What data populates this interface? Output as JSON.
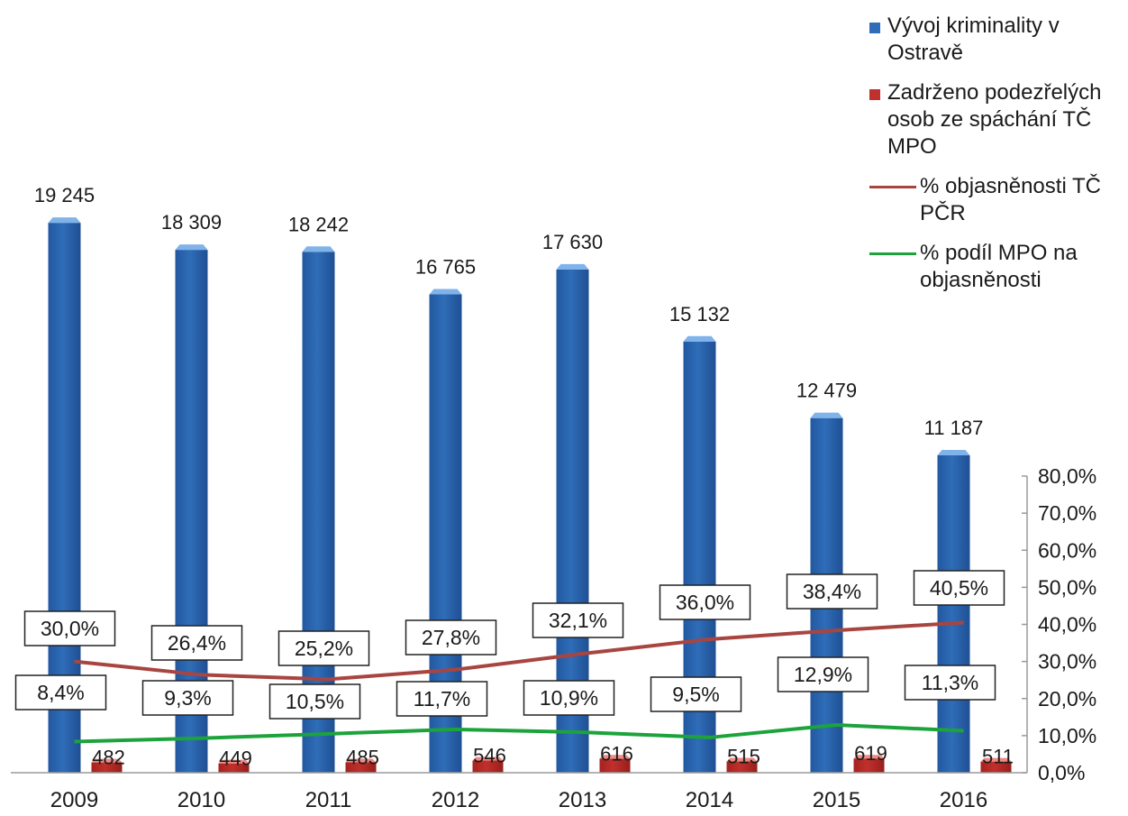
{
  "colors": {
    "blue_bar": "#2f6db8",
    "blue_bar_top": "#7fb3ea",
    "red_bar": "#c0302c",
    "red_bar_top": "#ef8a84",
    "brown_line": "#a84540",
    "green_line": "#1ca33c",
    "axis": "#9a9a9a"
  },
  "chart_data": {
    "type": "bar",
    "categories": [
      "2009",
      "2010",
      "2011",
      "2012",
      "2013",
      "2014",
      "2015",
      "2016"
    ],
    "series": [
      {
        "name": "Vývoj kriminality v Ostravě",
        "kind": "bar",
        "values": [
          19245,
          18309,
          18242,
          16765,
          17630,
          15132,
          12479,
          11187
        ],
        "labels": [
          "19 245",
          "18 309",
          "18 242",
          "16 765",
          "17 630",
          "15 132",
          "12 479",
          "11 187"
        ]
      },
      {
        "name": "Zadrženo podezřelých osob ze spáchání TČ MPO",
        "kind": "bar",
        "values": [
          482,
          449,
          485,
          546,
          616,
          515,
          619,
          511
        ],
        "labels": [
          "482",
          "449",
          "485",
          "546",
          "616",
          "515",
          "619",
          "511"
        ]
      },
      {
        "name": "% objasněnosti TČ PČR",
        "kind": "line",
        "axis": "secondary",
        "values": [
          30.0,
          26.4,
          25.2,
          27.8,
          32.1,
          36.0,
          38.4,
          40.5
        ],
        "labels": [
          "30,0%",
          "26,4%",
          "25,2%",
          "27,8%",
          "32,1%",
          "36,0%",
          "38,4%",
          "40,5%"
        ]
      },
      {
        "name": "% podíl MPO na objasněnosti",
        "kind": "line",
        "axis": "secondary",
        "values": [
          8.4,
          9.3,
          10.5,
          11.7,
          10.9,
          9.5,
          12.9,
          11.3
        ],
        "labels": [
          "8,4%",
          "9,3%",
          "10,5%",
          "11,7%",
          "10,9%",
          "9,5%",
          "12,9%",
          "11,3%"
        ]
      }
    ],
    "primary_axis": {
      "visible": false,
      "range": [
        0,
        20000
      ]
    },
    "secondary_axis": {
      "range": [
        0,
        80
      ],
      "ticks": [
        "0,0%",
        "10,0%",
        "20,0%",
        "30,0%",
        "40,0%",
        "50,0%",
        "60,0%",
        "70,0%",
        "80,0%"
      ]
    },
    "grid": false,
    "legend_position": "top-right"
  },
  "legend": [
    {
      "text": "Vývoj kriminality v Ostravě",
      "marker": "square",
      "color": "#2f6db8"
    },
    {
      "text": "Zadrženo podezřelých osob ze spáchání TČ MPO",
      "marker": "square",
      "color": "#c0302c"
    },
    {
      "text": "% objasněnosti TČ PČR",
      "marker": "line",
      "color": "#a84540"
    },
    {
      "text": "% podíl MPO na objasněnosti",
      "marker": "line",
      "color": "#1ca33c"
    }
  ]
}
